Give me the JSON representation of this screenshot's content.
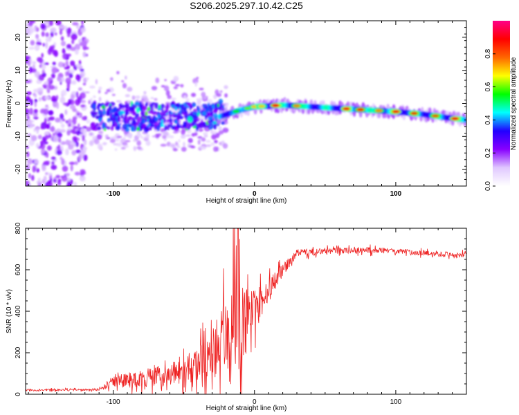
{
  "title": "S206.2025.297.10.42.C25",
  "chart_data": [
    {
      "type": "heatmap",
      "name": "spectrogram",
      "xlabel": "Height of straight line (km)",
      "ylabel": "Frequency (Hz)",
      "xlim": [
        -162,
        150
      ],
      "ylim": [
        -25,
        25
      ],
      "xticks": [
        -100,
        0,
        100
      ],
      "xtick_labels": [
        "-100",
        "0",
        "100"
      ],
      "yticks": [
        -20,
        -10,
        0,
        10,
        20
      ],
      "ytick_labels": [
        "-20",
        "-10",
        "0",
        "10",
        "20"
      ],
      "colorbar": {
        "label": "Normalized spectral amplitude",
        "range": [
          0,
          1
        ],
        "ticks": [
          0.0,
          0.2,
          0.4,
          0.6,
          0.8
        ],
        "tick_labels": [
          "0.0",
          "0.2",
          "0.4",
          "0.6",
          "0.8"
        ],
        "colors": [
          "#ffffff",
          "#e0c8ff",
          "#8800ff",
          "#2200ff",
          "#00ffff",
          "#00ff00",
          "#ffff00",
          "#ff6600",
          "#ff0000",
          "#ff0088"
        ]
      },
      "ridge": {
        "x": [
          -25,
          -10,
          0,
          20,
          40,
          60,
          80,
          100,
          120,
          140,
          150
        ],
        "freq": [
          -4,
          -2,
          -1,
          -0.5,
          -1,
          -1.5,
          -2,
          -2.5,
          -3.3,
          -4.5,
          -5
        ],
        "peak_x": [
          -13,
          -5,
          0,
          5,
          15,
          30,
          65,
          75,
          88,
          100,
          113,
          128,
          142
        ],
        "peak_amplitude": [
          0.55,
          0.6,
          0.7,
          0.7,
          0.9,
          0.75,
          0.9,
          0.85,
          0.75,
          0.9,
          0.85,
          0.8,
          0.9
        ]
      }
    },
    {
      "type": "line",
      "name": "snr",
      "xlabel": "Height of straight line (km)",
      "ylabel": "SNR (10 * v/v)",
      "xlim": [
        -162,
        150
      ],
      "ylim": [
        0,
        800
      ],
      "xticks": [
        -100,
        0,
        100
      ],
      "xtick_labels": [
        "-100",
        "0",
        "100"
      ],
      "yticks": [
        0,
        200,
        400,
        600,
        800
      ],
      "ytick_labels": [
        "0",
        "200",
        "400",
        "600",
        "800"
      ],
      "color": "#ee2222",
      "envelope": {
        "x": [
          -162,
          -110,
          -100,
          -75,
          -50,
          -40,
          -30,
          -20,
          -15,
          -10,
          0,
          5,
          10,
          20,
          30,
          50,
          80,
          100,
          120,
          150
        ],
        "base": [
          20,
          22,
          60,
          80,
          110,
          140,
          220,
          280,
          300,
          330,
          400,
          430,
          500,
          600,
          680,
          690,
          695,
          690,
          680,
          670
        ],
        "noise": [
          10,
          8,
          60,
          90,
          120,
          160,
          250,
          380,
          480,
          420,
          200,
          150,
          120,
          60,
          35,
          30,
          30,
          25,
          25,
          25
        ]
      }
    }
  ]
}
